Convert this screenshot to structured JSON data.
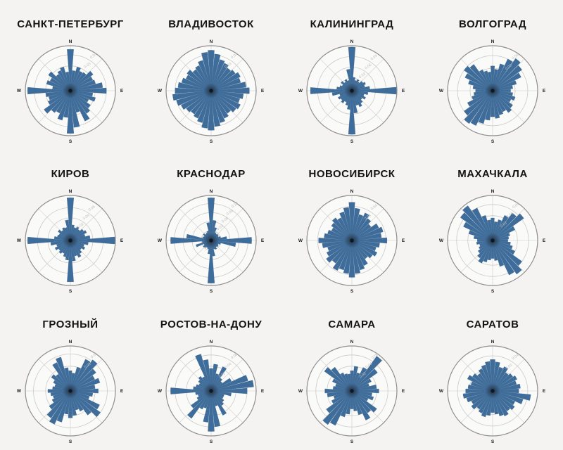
{
  "page": {
    "background": "#f4f3f1"
  },
  "compass": {
    "n": "N",
    "e": "E",
    "s": "S",
    "w": "W"
  },
  "style": {
    "bar_fill": "#3e6d9c",
    "bar_stroke": "#2d5680",
    "ring_stroke": "#cbcac8",
    "spoke_stroke": "#dad9d7",
    "outer_stroke": "#8f8e8c",
    "interior_fill": "#fafaf9",
    "tick_color": "#bdbcba",
    "compass_color": "#1a1a1a",
    "title_color": "#141414"
  },
  "chart_data": [
    {
      "type": "wind-rose",
      "title": "САНКТ-ПЕТЕРБУРГ",
      "direction_step_deg": 10,
      "start": "N",
      "clockwise": true,
      "rings": [
        {
          "radius": 0.55,
          "label": "0.03"
        },
        {
          "radius": 0.8,
          "label": "0.04"
        }
      ],
      "values": [
        0.92,
        0.45,
        0.55,
        0.48,
        0.5,
        0.62,
        0.55,
        0.58,
        0.72,
        0.8,
        0.5,
        0.58,
        0.45,
        0.55,
        0.62,
        0.75,
        0.5,
        0.82,
        0.95,
        0.6,
        0.68,
        0.55,
        0.6,
        0.72,
        0.55,
        0.5,
        0.55,
        0.95,
        0.4,
        0.55,
        0.5,
        0.6,
        0.45,
        0.5,
        0.55,
        0.42
      ]
    },
    {
      "type": "wind-rose",
      "title": "ВЛАДИВОСТОК",
      "direction_step_deg": 10,
      "start": "N",
      "clockwise": true,
      "rings": [
        {
          "radius": 0.55,
          "label": "0.03"
        },
        {
          "radius": 0.8,
          "label": "0.04"
        }
      ],
      "values": [
        0.9,
        0.82,
        0.72,
        0.68,
        0.62,
        0.66,
        0.72,
        0.68,
        0.78,
        0.85,
        0.72,
        0.66,
        0.72,
        0.68,
        0.62,
        0.68,
        0.74,
        0.8,
        0.88,
        0.84,
        0.74,
        0.68,
        0.64,
        0.68,
        0.74,
        0.8,
        0.86,
        0.8,
        0.74,
        0.68,
        0.62,
        0.66,
        0.58,
        0.62,
        0.7,
        0.86
      ]
    },
    {
      "type": "wind-rose",
      "title": "КАЛИНИНГРАД",
      "direction_step_deg": 10,
      "start": "N",
      "clockwise": true,
      "rings": [
        {
          "radius": 0.28,
          "label": "0.03"
        },
        {
          "radius": 0.52,
          "label": "0.06"
        },
        {
          "radius": 0.76,
          "label": "0.09"
        }
      ],
      "values": [
        0.97,
        0.3,
        0.24,
        0.28,
        0.24,
        0.3,
        0.34,
        0.3,
        0.4,
        1.0,
        0.36,
        0.28,
        0.34,
        0.28,
        0.34,
        0.4,
        0.34,
        0.5,
        0.97,
        0.42,
        0.34,
        0.28,
        0.34,
        0.3,
        0.34,
        0.28,
        0.44,
        0.92,
        0.34,
        0.28,
        0.24,
        0.3,
        0.24,
        0.28,
        0.24,
        0.48
      ]
    },
    {
      "type": "wind-rose",
      "title": "ВОЛГОГРАД",
      "direction_step_deg": 10,
      "start": "N",
      "clockwise": true,
      "rings": [
        {
          "radius": 0.5,
          "label": "0.03"
        },
        {
          "radius": 0.78,
          "label": "0.05"
        }
      ],
      "values": [
        0.55,
        0.48,
        0.62,
        0.78,
        0.88,
        0.8,
        0.7,
        0.55,
        0.45,
        0.4,
        0.45,
        0.52,
        0.45,
        0.55,
        0.6,
        0.52,
        0.56,
        0.62,
        0.58,
        0.66,
        0.76,
        0.86,
        0.9,
        0.78,
        0.62,
        0.48,
        0.42,
        0.38,
        0.44,
        0.56,
        0.68,
        0.78,
        0.72,
        0.52,
        0.46,
        0.42
      ]
    },
    {
      "type": "wind-rose",
      "title": "КИРОВ",
      "direction_step_deg": 10,
      "start": "N",
      "clockwise": true,
      "rings": [
        {
          "radius": 0.27,
          "label": "0.02"
        },
        {
          "radius": 0.5,
          "label": "0.04"
        },
        {
          "radius": 0.73,
          "label": "0.06"
        }
      ],
      "values": [
        0.95,
        0.35,
        0.3,
        0.34,
        0.3,
        0.36,
        0.4,
        0.34,
        0.44,
        1.0,
        0.4,
        0.32,
        0.36,
        0.3,
        0.36,
        0.42,
        0.36,
        0.46,
        0.92,
        0.44,
        0.38,
        0.32,
        0.36,
        0.32,
        0.38,
        0.32,
        0.44,
        0.95,
        0.36,
        0.3,
        0.28,
        0.34,
        0.28,
        0.32,
        0.3,
        0.46
      ]
    },
    {
      "type": "wind-rose",
      "title": "КРАСНОДАР",
      "direction_step_deg": 10,
      "start": "N",
      "clockwise": true,
      "rings": [
        {
          "radius": 0.22,
          "label": "0.03"
        },
        {
          "radius": 0.42,
          "label": "0.06"
        },
        {
          "radius": 0.62,
          "label": "0.09"
        },
        {
          "radius": 0.82,
          "label": "0.12"
        }
      ],
      "values": [
        0.95,
        0.45,
        0.3,
        0.2,
        0.18,
        0.2,
        0.18,
        0.22,
        0.35,
        0.9,
        0.55,
        0.22,
        0.18,
        0.2,
        0.18,
        0.22,
        0.2,
        0.35,
        0.95,
        0.3,
        0.2,
        0.18,
        0.2,
        0.22,
        0.18,
        0.35,
        0.2,
        0.9,
        0.55,
        0.2,
        0.18,
        0.22,
        0.18,
        0.2,
        0.22,
        0.4
      ]
    },
    {
      "type": "wind-rose",
      "title": "НОВОСИБИРСК",
      "direction_step_deg": 10,
      "start": "N",
      "clockwise": true,
      "rings": [
        {
          "radius": 0.5,
          "label": "0.03"
        },
        {
          "radius": 0.76,
          "label": "0.04"
        }
      ],
      "values": [
        0.85,
        0.72,
        0.6,
        0.68,
        0.6,
        0.52,
        0.66,
        0.72,
        0.66,
        0.78,
        0.62,
        0.56,
        0.62,
        0.56,
        0.5,
        0.62,
        0.68,
        0.74,
        0.82,
        0.74,
        0.68,
        0.74,
        0.62,
        0.7,
        0.62,
        0.56,
        0.66,
        0.74,
        0.62,
        0.56,
        0.5,
        0.56,
        0.62,
        0.56,
        0.66,
        0.74
      ]
    },
    {
      "type": "wind-rose",
      "title": "МАХАЧКАЛА",
      "direction_step_deg": 10,
      "start": "N",
      "clockwise": true,
      "rings": [
        {
          "radius": 0.3,
          "label": "0.03"
        },
        {
          "radius": 0.55,
          "label": "0.04"
        },
        {
          "radius": 0.8,
          "label": "0.05"
        }
      ],
      "values": [
        0.5,
        0.42,
        0.48,
        0.62,
        0.75,
        0.85,
        0.55,
        0.4,
        0.36,
        0.34,
        0.4,
        0.46,
        0.55,
        0.8,
        0.92,
        0.85,
        0.6,
        0.45,
        0.4,
        0.44,
        0.5,
        0.56,
        0.48,
        0.4,
        0.34,
        0.3,
        0.36,
        0.34,
        0.42,
        0.55,
        0.72,
        0.88,
        0.95,
        0.8,
        0.58,
        0.46
      ]
    },
    {
      "type": "wind-rose",
      "title": "ГРОЗНЫЙ",
      "direction_step_deg": 10,
      "start": "N",
      "clockwise": true,
      "rings": [
        {
          "radius": 0.55,
          "label": "0.03"
        },
        {
          "radius": 0.82,
          "label": "0.05"
        }
      ],
      "values": [
        0.45,
        0.4,
        0.55,
        0.78,
        0.85,
        0.7,
        0.6,
        0.68,
        0.55,
        0.62,
        0.5,
        0.44,
        0.72,
        0.82,
        0.66,
        0.5,
        0.44,
        0.55,
        0.6,
        0.52,
        0.72,
        0.82,
        0.74,
        0.58,
        0.45,
        0.4,
        0.44,
        0.5,
        0.4,
        0.36,
        0.42,
        0.52,
        0.46,
        0.7,
        0.78,
        0.52
      ]
    },
    {
      "type": "wind-rose",
      "title": "РОСТОВ-НА-ДОНУ",
      "direction_step_deg": 10,
      "start": "N",
      "clockwise": true,
      "rings": [
        {
          "radius": 0.3,
          "label": "0.02"
        },
        {
          "radius": 0.55,
          "label": "0.04"
        },
        {
          "radius": 0.8,
          "label": "0.06"
        }
      ],
      "values": [
        0.5,
        0.6,
        0.4,
        0.6,
        0.35,
        0.3,
        0.5,
        0.85,
        0.95,
        0.8,
        0.45,
        0.3,
        0.3,
        0.35,
        0.4,
        0.6,
        0.35,
        0.8,
        0.9,
        0.7,
        0.4,
        0.45,
        0.75,
        0.55,
        0.35,
        0.3,
        0.35,
        0.9,
        0.4,
        0.35,
        0.3,
        0.35,
        0.4,
        0.35,
        0.85,
        0.7
      ]
    },
    {
      "type": "wind-rose",
      "title": "САМАРА",
      "direction_step_deg": 10,
      "start": "N",
      "clockwise": true,
      "rings": [
        {
          "radius": 0.3,
          "label": "0.02"
        },
        {
          "radius": 0.55,
          "label": "0.04"
        },
        {
          "radius": 0.8,
          "label": "0.06"
        }
      ],
      "values": [
        0.45,
        0.55,
        0.42,
        0.58,
        0.95,
        0.7,
        0.48,
        0.4,
        0.55,
        0.6,
        0.45,
        0.5,
        0.4,
        0.68,
        0.6,
        0.72,
        0.55,
        0.45,
        0.4,
        0.52,
        0.6,
        0.85,
        0.92,
        0.7,
        0.5,
        0.42,
        0.55,
        0.6,
        0.42,
        0.38,
        0.48,
        0.75,
        0.65,
        0.45,
        0.4,
        0.38
      ]
    },
    {
      "type": "wind-rose",
      "title": "САРАТОВ",
      "direction_step_deg": 10,
      "start": "N",
      "clockwise": true,
      "rings": [
        {
          "radius": 0.52,
          "label": "0.03"
        },
        {
          "radius": 0.78,
          "label": "0.04"
        }
      ],
      "values": [
        0.7,
        0.65,
        0.55,
        0.6,
        0.5,
        0.55,
        0.6,
        0.55,
        0.62,
        0.58,
        0.85,
        0.7,
        0.55,
        0.6,
        0.55,
        0.62,
        0.58,
        0.52,
        0.48,
        0.55,
        0.6,
        0.55,
        0.5,
        0.58,
        0.52,
        0.6,
        0.66,
        0.6,
        0.55,
        0.5,
        0.62,
        0.55,
        0.48,
        0.55,
        0.6,
        0.66
      ]
    }
  ]
}
